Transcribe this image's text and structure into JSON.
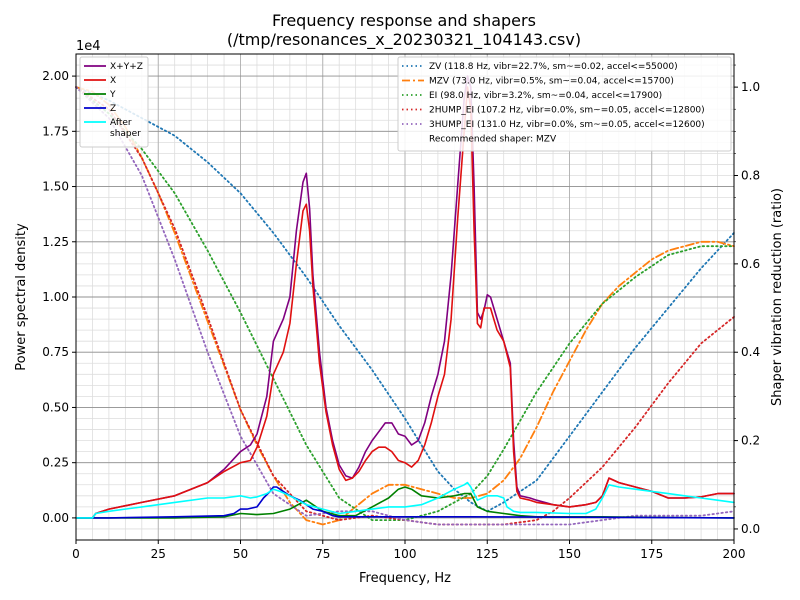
{
  "chart_data": {
    "type": "line",
    "title": "Frequency response and shapers",
    "subtitle": "(/tmp/resonances_x_20230321_104143.csv)",
    "xlabel": "Frequency, Hz",
    "ylabel": "Power spectral density",
    "y2label": "Shaper vibration reduction (ratio)",
    "y_multiplier_label": "1e4",
    "xlim": [
      0,
      200
    ],
    "ylim": [
      -1000,
      21000
    ],
    "y2lim": [
      -0.025,
      1.075
    ],
    "x_ticks": [
      0,
      25,
      50,
      75,
      100,
      125,
      150,
      175,
      200
    ],
    "y_ticks": [
      {
        "value": 0,
        "label": "0.00"
      },
      {
        "value": 2500,
        "label": "0.25"
      },
      {
        "value": 5000,
        "label": "0.50"
      },
      {
        "value": 7500,
        "label": "0.75"
      },
      {
        "value": 10000,
        "label": "1.00"
      },
      {
        "value": 12500,
        "label": "1.25"
      },
      {
        "value": 15000,
        "label": "1.50"
      },
      {
        "value": 17500,
        "label": "1.75"
      },
      {
        "value": 20000,
        "label": "2.00"
      }
    ],
    "y2_ticks": [
      {
        "value": 0,
        "label": "0.0"
      },
      {
        "value": 0.2,
        "label": "0.2"
      },
      {
        "value": 0.4,
        "label": "0.4"
      },
      {
        "value": 0.6,
        "label": "0.6"
      },
      {
        "value": 0.8,
        "label": "0.8"
      },
      {
        "value": 1.0,
        "label": "1.0"
      }
    ],
    "grid": true,
    "legend_left_placement": "top-left",
    "legend_right_placement": "top-right",
    "series": [
      {
        "name": "X+Y+Z",
        "color": "#800080",
        "style": "solid",
        "axis": "left",
        "x": [
          0,
          5,
          6,
          10,
          20,
          30,
          40,
          45,
          50,
          53,
          55,
          58,
          60,
          63,
          65,
          67,
          69,
          70,
          71,
          72,
          74,
          76,
          78,
          80,
          82,
          84,
          86,
          88,
          90,
          92,
          94,
          96,
          98,
          100,
          102,
          104,
          106,
          108,
          110,
          112,
          114,
          116,
          118,
          119,
          120,
          121,
          122,
          123,
          124,
          125,
          126,
          127,
          128,
          130,
          132,
          133,
          134,
          135,
          138,
          140,
          145,
          150,
          155,
          158,
          160,
          162,
          165,
          170,
          175,
          180,
          185,
          190,
          195,
          200
        ],
        "y": [
          0,
          0,
          200,
          400,
          700,
          1000,
          1600,
          2200,
          3000,
          3300,
          3800,
          5500,
          8000,
          9000,
          10000,
          13000,
          15200,
          15600,
          14000,
          11000,
          7500,
          5000,
          3500,
          2400,
          1900,
          1800,
          2300,
          3000,
          3500,
          3900,
          4300,
          4300,
          3800,
          3700,
          3300,
          3500,
          4300,
          5500,
          6500,
          8000,
          11000,
          15000,
          19000,
          20000,
          19500,
          15000,
          9300,
          9000,
          9400,
          10100,
          10000,
          9500,
          9000,
          8000,
          7000,
          3500,
          1400,
          1000,
          900,
          800,
          600,
          500,
          600,
          700,
          1000,
          1800,
          1600,
          1400,
          1200,
          900,
          900,
          950,
          1100,
          1100
        ]
      },
      {
        "name": "X",
        "color": "#e01010",
        "style": "solid",
        "axis": "left",
        "x": [
          0,
          5,
          6,
          10,
          20,
          30,
          40,
          45,
          50,
          53,
          55,
          58,
          60,
          63,
          65,
          67,
          69,
          70,
          71,
          72,
          74,
          76,
          78,
          80,
          82,
          84,
          86,
          88,
          90,
          92,
          94,
          96,
          98,
          100,
          102,
          104,
          106,
          108,
          110,
          112,
          114,
          116,
          118,
          119,
          120,
          121,
          122,
          123,
          124,
          125,
          126,
          127,
          128,
          130,
          132,
          133,
          134,
          135,
          138,
          140,
          145,
          150,
          155,
          158,
          160,
          162,
          165,
          170,
          175,
          180,
          185,
          190,
          195,
          200
        ],
        "y": [
          0,
          0,
          200,
          400,
          700,
          1000,
          1600,
          2100,
          2500,
          2600,
          3200,
          4600,
          6500,
          7500,
          8800,
          11500,
          13900,
          14200,
          13000,
          10500,
          7000,
          4800,
          3300,
          2200,
          1700,
          1800,
          2100,
          2600,
          3000,
          3200,
          3200,
          3000,
          2600,
          2500,
          2300,
          2600,
          3300,
          4300,
          5500,
          6500,
          9000,
          13500,
          17500,
          19500,
          18500,
          13000,
          8800,
          8600,
          9500,
          9500,
          9500,
          9000,
          8500,
          8000,
          6800,
          3000,
          1200,
          900,
          800,
          700,
          600,
          500,
          600,
          700,
          1000,
          1800,
          1600,
          1400,
          1200,
          900,
          900,
          950,
          1100,
          1100
        ]
      },
      {
        "name": "Y",
        "color": "#008000",
        "style": "solid",
        "axis": "left",
        "x": [
          0,
          30,
          45,
          50,
          55,
          60,
          65,
          70,
          75,
          80,
          85,
          90,
          95,
          98,
          100,
          102,
          105,
          110,
          115,
          118,
          120,
          122,
          125,
          130,
          135,
          140,
          150,
          160,
          180,
          200
        ],
        "y": [
          0,
          0,
          50,
          200,
          150,
          200,
          400,
          800,
          300,
          100,
          100,
          500,
          900,
          1300,
          1400,
          1300,
          1000,
          900,
          1000,
          1100,
          1100,
          500,
          300,
          200,
          100,
          50,
          50,
          50,
          20,
          0
        ]
      },
      {
        "name": "Z",
        "color": "#0000cd",
        "style": "solid",
        "axis": "left",
        "x": [
          0,
          10,
          30,
          45,
          48,
          50,
          52,
          55,
          57,
          59,
          60,
          61,
          62,
          63,
          65,
          68,
          70,
          72,
          75,
          78,
          80,
          100,
          120,
          150,
          200
        ],
        "y": [
          0,
          0,
          50,
          100,
          200,
          400,
          400,
          500,
          900,
          1200,
          1400,
          1400,
          1300,
          1200,
          1000,
          800,
          600,
          400,
          300,
          100,
          50,
          50,
          50,
          30,
          0
        ]
      },
      {
        "name": "After\nshaper",
        "color": "#00ffff",
        "style": "solid",
        "axis": "left",
        "x": [
          0,
          5,
          6,
          10,
          20,
          30,
          40,
          45,
          50,
          53,
          55,
          58,
          60,
          62,
          65,
          70,
          75,
          80,
          85,
          90,
          95,
          100,
          105,
          110,
          115,
          118,
          119,
          120,
          122,
          125,
          128,
          130,
          131,
          133,
          135,
          140,
          150,
          155,
          158,
          160,
          162,
          165,
          170,
          175,
          180,
          185,
          190,
          195,
          200
        ],
        "y": [
          0,
          0,
          200,
          300,
          500,
          700,
          900,
          900,
          1000,
          900,
          950,
          1100,
          1300,
          1200,
          1000,
          600,
          400,
          200,
          300,
          400,
          500,
          500,
          600,
          900,
          1300,
          1500,
          1600,
          1400,
          800,
          1000,
          1000,
          900,
          500,
          300,
          250,
          250,
          200,
          200,
          400,
          900,
          1500,
          1400,
          1300,
          1200,
          1100,
          1000,
          900,
          800,
          700
        ]
      },
      {
        "name": "ZV (118.8 Hz, vibr=22.7%, sm~=0.02, accel<=55000)",
        "color": "#1f77b4",
        "style": "dotted",
        "axis": "right",
        "x": [
          0,
          10,
          20,
          30,
          40,
          50,
          60,
          70,
          80,
          90,
          100,
          105,
          110,
          115,
          120,
          125,
          130,
          140,
          150,
          160,
          170,
          180,
          190,
          200
        ],
        "y": [
          1.0,
          0.97,
          0.93,
          0.89,
          0.83,
          0.76,
          0.67,
          0.57,
          0.46,
          0.36,
          0.25,
          0.19,
          0.13,
          0.09,
          0.06,
          0.04,
          0.06,
          0.11,
          0.21,
          0.31,
          0.41,
          0.5,
          0.59,
          0.67
        ]
      },
      {
        "name": "MZV (73.0 Hz, vibr=0.5%, sm~=0.04, accel<=15700)",
        "color": "#ff7f0e",
        "style": "dashdot",
        "axis": "right",
        "x": [
          0,
          5,
          10,
          15,
          20,
          25,
          30,
          35,
          40,
          45,
          50,
          55,
          60,
          65,
          70,
          75,
          80,
          85,
          90,
          95,
          100,
          105,
          110,
          115,
          120,
          125,
          130,
          135,
          140,
          145,
          150,
          155,
          160,
          165,
          170,
          175,
          180,
          185,
          190,
          195,
          200
        ],
        "y": [
          1.0,
          0.99,
          0.96,
          0.91,
          0.84,
          0.76,
          0.67,
          0.57,
          0.47,
          0.37,
          0.27,
          0.19,
          0.12,
          0.06,
          0.02,
          0.01,
          0.02,
          0.05,
          0.08,
          0.1,
          0.1,
          0.09,
          0.08,
          0.07,
          0.07,
          0.08,
          0.11,
          0.16,
          0.23,
          0.31,
          0.38,
          0.45,
          0.51,
          0.55,
          0.58,
          0.61,
          0.63,
          0.64,
          0.65,
          0.65,
          0.64
        ]
      },
      {
        "name": "EI (98.0 Hz, vibr=3.2%, sm~=0.04, accel<=17900)",
        "color": "#2ca02c",
        "style": "dotted",
        "axis": "right",
        "x": [
          0,
          10,
          20,
          30,
          40,
          50,
          60,
          70,
          80,
          90,
          100,
          110,
          115,
          120,
          125,
          130,
          140,
          150,
          160,
          170,
          180,
          190,
          200
        ],
        "y": [
          1.0,
          0.94,
          0.86,
          0.76,
          0.63,
          0.49,
          0.34,
          0.19,
          0.07,
          0.02,
          0.02,
          0.04,
          0.06,
          0.08,
          0.12,
          0.18,
          0.31,
          0.42,
          0.51,
          0.57,
          0.62,
          0.64,
          0.64
        ]
      },
      {
        "name": "2HUMP_EI (107.2 Hz, vibr=0.0%, sm~=0.05, accel<=12800)",
        "color": "#d62728",
        "style": "dotted",
        "axis": "right",
        "x": [
          0,
          10,
          20,
          30,
          40,
          50,
          60,
          70,
          80,
          90,
          100,
          110,
          120,
          130,
          140,
          145,
          150,
          160,
          170,
          180,
          190,
          200
        ],
        "y": [
          1.0,
          0.95,
          0.84,
          0.68,
          0.48,
          0.27,
          0.12,
          0.04,
          0.02,
          0.03,
          0.02,
          0.01,
          0.01,
          0.01,
          0.02,
          0.04,
          0.07,
          0.14,
          0.23,
          0.33,
          0.42,
          0.48
        ]
      },
      {
        "name": "3HUMP_EI (131.0 Hz, vibr=0.0%, sm~=0.05, accel<=12600)",
        "color": "#9467bd",
        "style": "dotted",
        "axis": "right",
        "x": [
          0,
          10,
          20,
          30,
          40,
          50,
          60,
          70,
          80,
          90,
          100,
          110,
          120,
          130,
          140,
          150,
          160,
          170,
          180,
          190,
          200
        ],
        "y": [
          1.0,
          0.93,
          0.8,
          0.61,
          0.4,
          0.21,
          0.08,
          0.03,
          0.04,
          0.04,
          0.02,
          0.01,
          0.01,
          0.01,
          0.01,
          0.01,
          0.02,
          0.03,
          0.03,
          0.03,
          0.04
        ]
      }
    ],
    "legend_right_note": "Recommended shaper: MZV"
  }
}
